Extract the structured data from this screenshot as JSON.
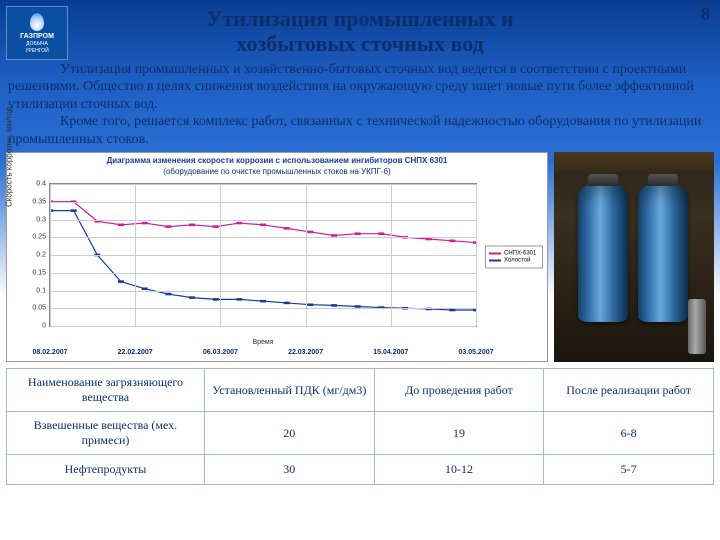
{
  "page_number": "8",
  "logo": {
    "brand": "ГАЗПРОМ",
    "sub1": "ДОБЫЧА",
    "sub2": "УРЕНГОЙ"
  },
  "title_line1": "Утилизация промышленных и",
  "title_line2": "хозбытовых сточных вод",
  "para1": "Утилизация   промышленных и хозяйственно-бытовых сточных вод ведется в соответствии с проектными решениями. Общество в целях снижения воздействия на окружающую среду ищет новые пути более эффективной утилизации сточных вод.",
  "para2": "Кроме   того,  решается   комплекс   работ,  связанных   с технической   надежностью оборудования по утилизации промышленных стоков.",
  "chart": {
    "title_small": "Диаграмма изменения скорости коррозии с использованием ингибиторов СНПХ 6301",
    "subtitle": "(оборудование по очистке промышленных стоков на УКПГ-6)",
    "ylabel": "Скорость коррозии, мм/год",
    "xlabel": "Время",
    "ylim": [
      0,
      0.4
    ],
    "yticks": [
      "0",
      "0.05",
      "0.1",
      "0.15",
      "0.2",
      "0.25",
      "0.3",
      "0.35",
      "0.4"
    ],
    "xticks": [
      "08.02.2007",
      "22.02.2007",
      "06.03.2007",
      "22.03.2007",
      "15.04.2007",
      "03.05.2007"
    ],
    "series": [
      {
        "name": "СНПХ-6301",
        "color": "#d01b9a",
        "y": [
          0.35,
          0.35,
          0.295,
          0.285,
          0.29,
          0.28,
          0.285,
          0.28,
          0.29,
          0.285,
          0.275,
          0.265,
          0.255,
          0.26,
          0.26,
          0.25,
          0.245,
          0.24,
          0.235
        ]
      },
      {
        "name": "Холостой",
        "color": "#1a3a9a",
        "y": [
          0.325,
          0.325,
          0.2,
          0.125,
          0.105,
          0.09,
          0.08,
          0.075,
          0.075,
          0.07,
          0.065,
          0.06,
          0.058,
          0.055,
          0.052,
          0.05,
          0.048,
          0.045,
          0.045
        ]
      }
    ],
    "marker": "square",
    "grid_color": "#cccccc",
    "background": "#ffffff"
  },
  "table": {
    "headers": [
      "Наименование загрязняющего вещества",
      "Установленный ПДК (мг/дм3)",
      "До проведения работ",
      "После реализации работ"
    ],
    "rows": [
      [
        "Взвешенные вещества (мех. примеси)",
        "20",
        "19",
        "6-8"
      ],
      [
        "Нефтепродукты",
        "30",
        "10-12",
        "5-7"
      ]
    ]
  }
}
